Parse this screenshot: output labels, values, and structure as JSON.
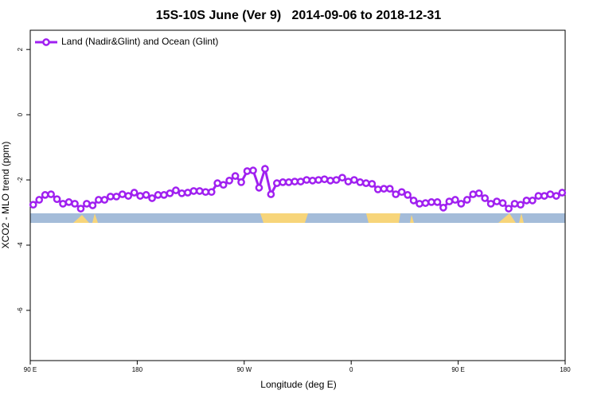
{
  "chart_data": {
    "type": "line",
    "title": "15S-10S June (Ver 9)   2014-09-06 to 2018-12-31",
    "x_label": "Longitude (deg E)",
    "y_label": "XCO2 - MLO trend (ppm)",
    "x": [
      92.5,
      97.5,
      102.5,
      107.5,
      112.5,
      117.5,
      122.5,
      127.5,
      132.5,
      137.5,
      142.5,
      147.5,
      152.5,
      157.5,
      162.5,
      167.5,
      172.5,
      177.5,
      182.5,
      187.5,
      192.5,
      197.5,
      202.5,
      207.5,
      212.5,
      217.5,
      222.5,
      227.5,
      232.5,
      237.5,
      242.5,
      247.5,
      252.5,
      257.5,
      262.5,
      267.5,
      272.5,
      277.5,
      282.5,
      287.5,
      292.5,
      297.5,
      302.5,
      307.5,
      312.5,
      317.5,
      322.5,
      327.5,
      332.5,
      337.5,
      342.5,
      347.5,
      352.5,
      357.5,
      362.5,
      367.5,
      372.5,
      377.5,
      382.5,
      387.5,
      392.5,
      397.5,
      402.5,
      407.5,
      412.5,
      417.5,
      422.5,
      427.5,
      432.5,
      437.5,
      442.5,
      447.5,
      452.5,
      457.5,
      462.5,
      467.5,
      472.5,
      477.5,
      482.5,
      487.5,
      492.5,
      497.5,
      502.5,
      507.5,
      512.5,
      517.5,
      522.5,
      527.5,
      532.5,
      537.5
    ],
    "series": [
      {
        "name": "Land (Nadir&Glint) and Ocean (Glint)",
        "color": "#a020f0",
        "values": [
          -2.76,
          -2.61,
          -2.46,
          -2.44,
          -2.59,
          -2.73,
          -2.68,
          -2.73,
          -2.88,
          -2.73,
          -2.78,
          -2.61,
          -2.61,
          -2.51,
          -2.51,
          -2.44,
          -2.49,
          -2.39,
          -2.49,
          -2.46,
          -2.56,
          -2.46,
          -2.46,
          -2.41,
          -2.32,
          -2.41,
          -2.39,
          -2.34,
          -2.34,
          -2.37,
          -2.37,
          -2.1,
          -2.15,
          -2.02,
          -1.88,
          -2.07,
          -1.73,
          -1.71,
          -2.24,
          -1.66,
          -2.44,
          -2.1,
          -2.07,
          -2.07,
          -2.05,
          -2.05,
          -2.0,
          -2.02,
          -2.0,
          -1.98,
          -2.02,
          -2.0,
          -1.93,
          -2.05,
          -2.0,
          -2.07,
          -2.1,
          -2.12,
          -2.29,
          -2.27,
          -2.27,
          -2.44,
          -2.37,
          -2.46,
          -2.63,
          -2.73,
          -2.71,
          -2.68,
          -2.68,
          -2.85,
          -2.66,
          -2.61,
          -2.73,
          -2.61,
          -2.44,
          -2.41,
          -2.56,
          -2.73,
          -2.66,
          -2.71,
          -2.88,
          -2.73,
          -2.76,
          -2.63,
          -2.63,
          -2.49,
          -2.49,
          -2.44,
          -2.49,
          -2.39
        ]
      }
    ],
    "xlim": [
      90,
      540
    ],
    "xticks": [
      {
        "value": 90,
        "label": "90 E"
      },
      180,
      {
        "value": 270,
        "label": "90 W"
      },
      {
        "value": 360,
        "label": "0"
      },
      {
        "value": 450,
        "label": "90 E"
      },
      {
        "value": 540,
        "label": "180"
      }
    ],
    "ylim": [
      -7.54,
      2.59
    ],
    "yticks": [
      2,
      0,
      -2,
      -4,
      -6
    ],
    "legend": "topleft"
  }
}
